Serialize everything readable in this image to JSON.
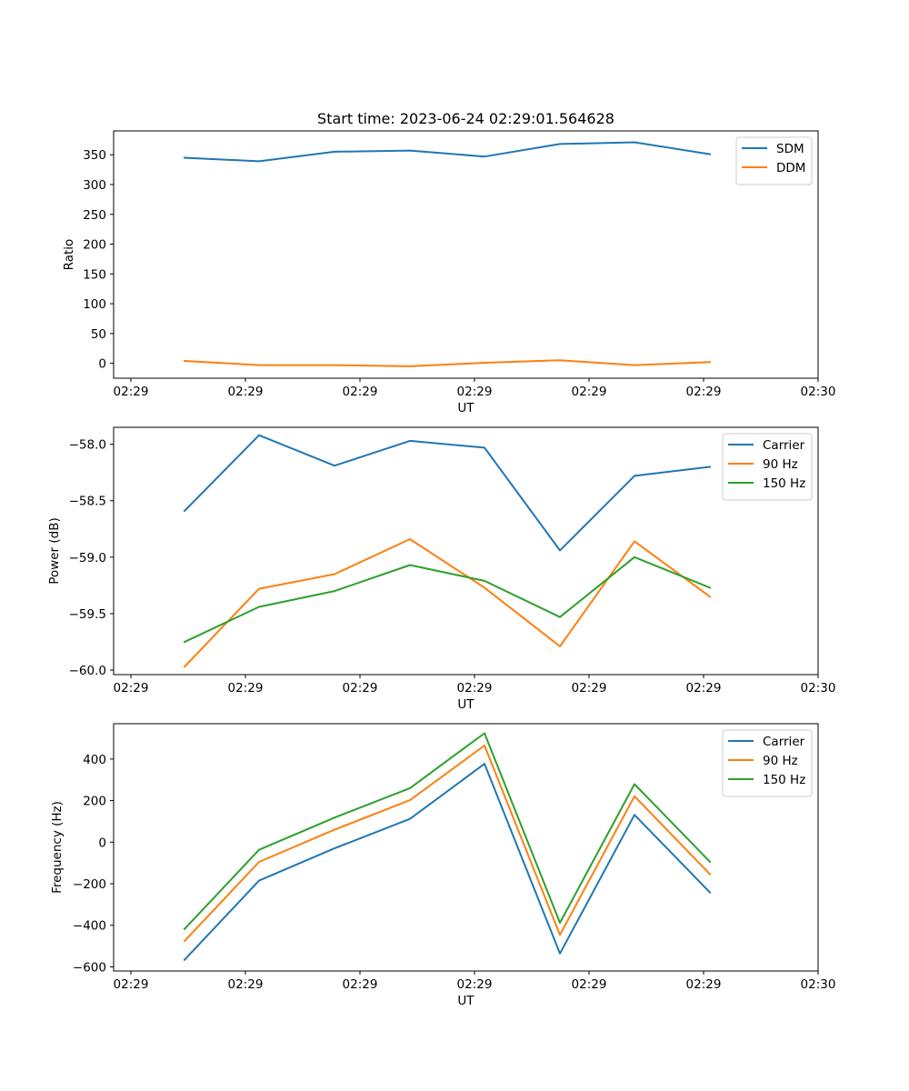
{
  "figure": {
    "title": "Start time: 2023-06-24 02:29:01.564628"
  },
  "chart_data": [
    {
      "type": "line",
      "title": "Start time: 2023-06-24 02:29:01.564628",
      "xlabel": "UT",
      "ylabel": "Ratio",
      "x_tick_labels": [
        "02:29",
        "02:29",
        "02:29",
        "02:29",
        "02:29",
        "02:29",
        "02:30"
      ],
      "y_ticks": [
        0,
        50,
        100,
        150,
        200,
        250,
        300,
        350
      ],
      "y_tick_labels": [
        "0",
        "50",
        "100",
        "150",
        "200",
        "250",
        "300",
        "350"
      ],
      "ylim": [
        -25,
        390
      ],
      "legend_position": "top-right",
      "grid": false,
      "series": [
        {
          "name": "SDM",
          "color": "#1f77b4",
          "values": [
            345,
            339,
            355,
            357,
            347,
            368,
            371,
            351
          ]
        },
        {
          "name": "DDM",
          "color": "#ff7f0e",
          "values": [
            4,
            -3,
            -3,
            -5,
            1,
            5,
            -3,
            2
          ]
        }
      ]
    },
    {
      "type": "line",
      "title": "",
      "xlabel": "UT",
      "ylabel": "Power (dB)",
      "x_tick_labels": [
        "02:29",
        "02:29",
        "02:29",
        "02:29",
        "02:29",
        "02:29",
        "02:30"
      ],
      "y_ticks": [
        -60.0,
        -59.5,
        -59.0,
        -58.5,
        -58.0
      ],
      "y_tick_labels": [
        "−60.0",
        "−59.5",
        "−59.0",
        "−58.5",
        "−58.0"
      ],
      "ylim": [
        -60.04,
        -57.85
      ],
      "legend_position": "top-right",
      "grid": false,
      "series": [
        {
          "name": "Carrier",
          "color": "#1f77b4",
          "values": [
            -58.59,
            -57.92,
            -58.19,
            -57.97,
            -58.03,
            -58.94,
            -58.28,
            -58.2
          ]
        },
        {
          "name": "90 Hz",
          "color": "#ff7f0e",
          "values": [
            -59.97,
            -59.28,
            -59.15,
            -58.84,
            -59.27,
            -59.79,
            -58.86,
            -59.35
          ]
        },
        {
          "name": "150 Hz",
          "color": "#2ca02c",
          "values": [
            -59.75,
            -59.44,
            -59.3,
            -59.07,
            -59.21,
            -59.53,
            -59.0,
            -59.27
          ]
        }
      ]
    },
    {
      "type": "line",
      "title": "",
      "xlabel": "UT",
      "ylabel": "Frequency (Hz)",
      "x_tick_labels": [
        "02:29",
        "02:29",
        "02:29",
        "02:29",
        "02:29",
        "02:29",
        "02:30"
      ],
      "y_ticks": [
        -600,
        -400,
        -200,
        0,
        200,
        400
      ],
      "y_tick_labels": [
        "−600",
        "−400",
        "−200",
        "0",
        "200",
        "400"
      ],
      "ylim": [
        -620,
        570
      ],
      "legend_position": "top-right",
      "grid": false,
      "series": [
        {
          "name": "Carrier",
          "color": "#1f77b4",
          "values": [
            -566,
            -185,
            -30,
            112,
            377,
            -536,
            131,
            -242
          ]
        },
        {
          "name": "90 Hz",
          "color": "#ff7f0e",
          "values": [
            -476,
            -95,
            60,
            202,
            465,
            -446,
            221,
            -154
          ]
        },
        {
          "name": "150 Hz",
          "color": "#2ca02c",
          "values": [
            -418,
            -37,
            118,
            260,
            524,
            -388,
            279,
            -94
          ]
        }
      ]
    }
  ]
}
